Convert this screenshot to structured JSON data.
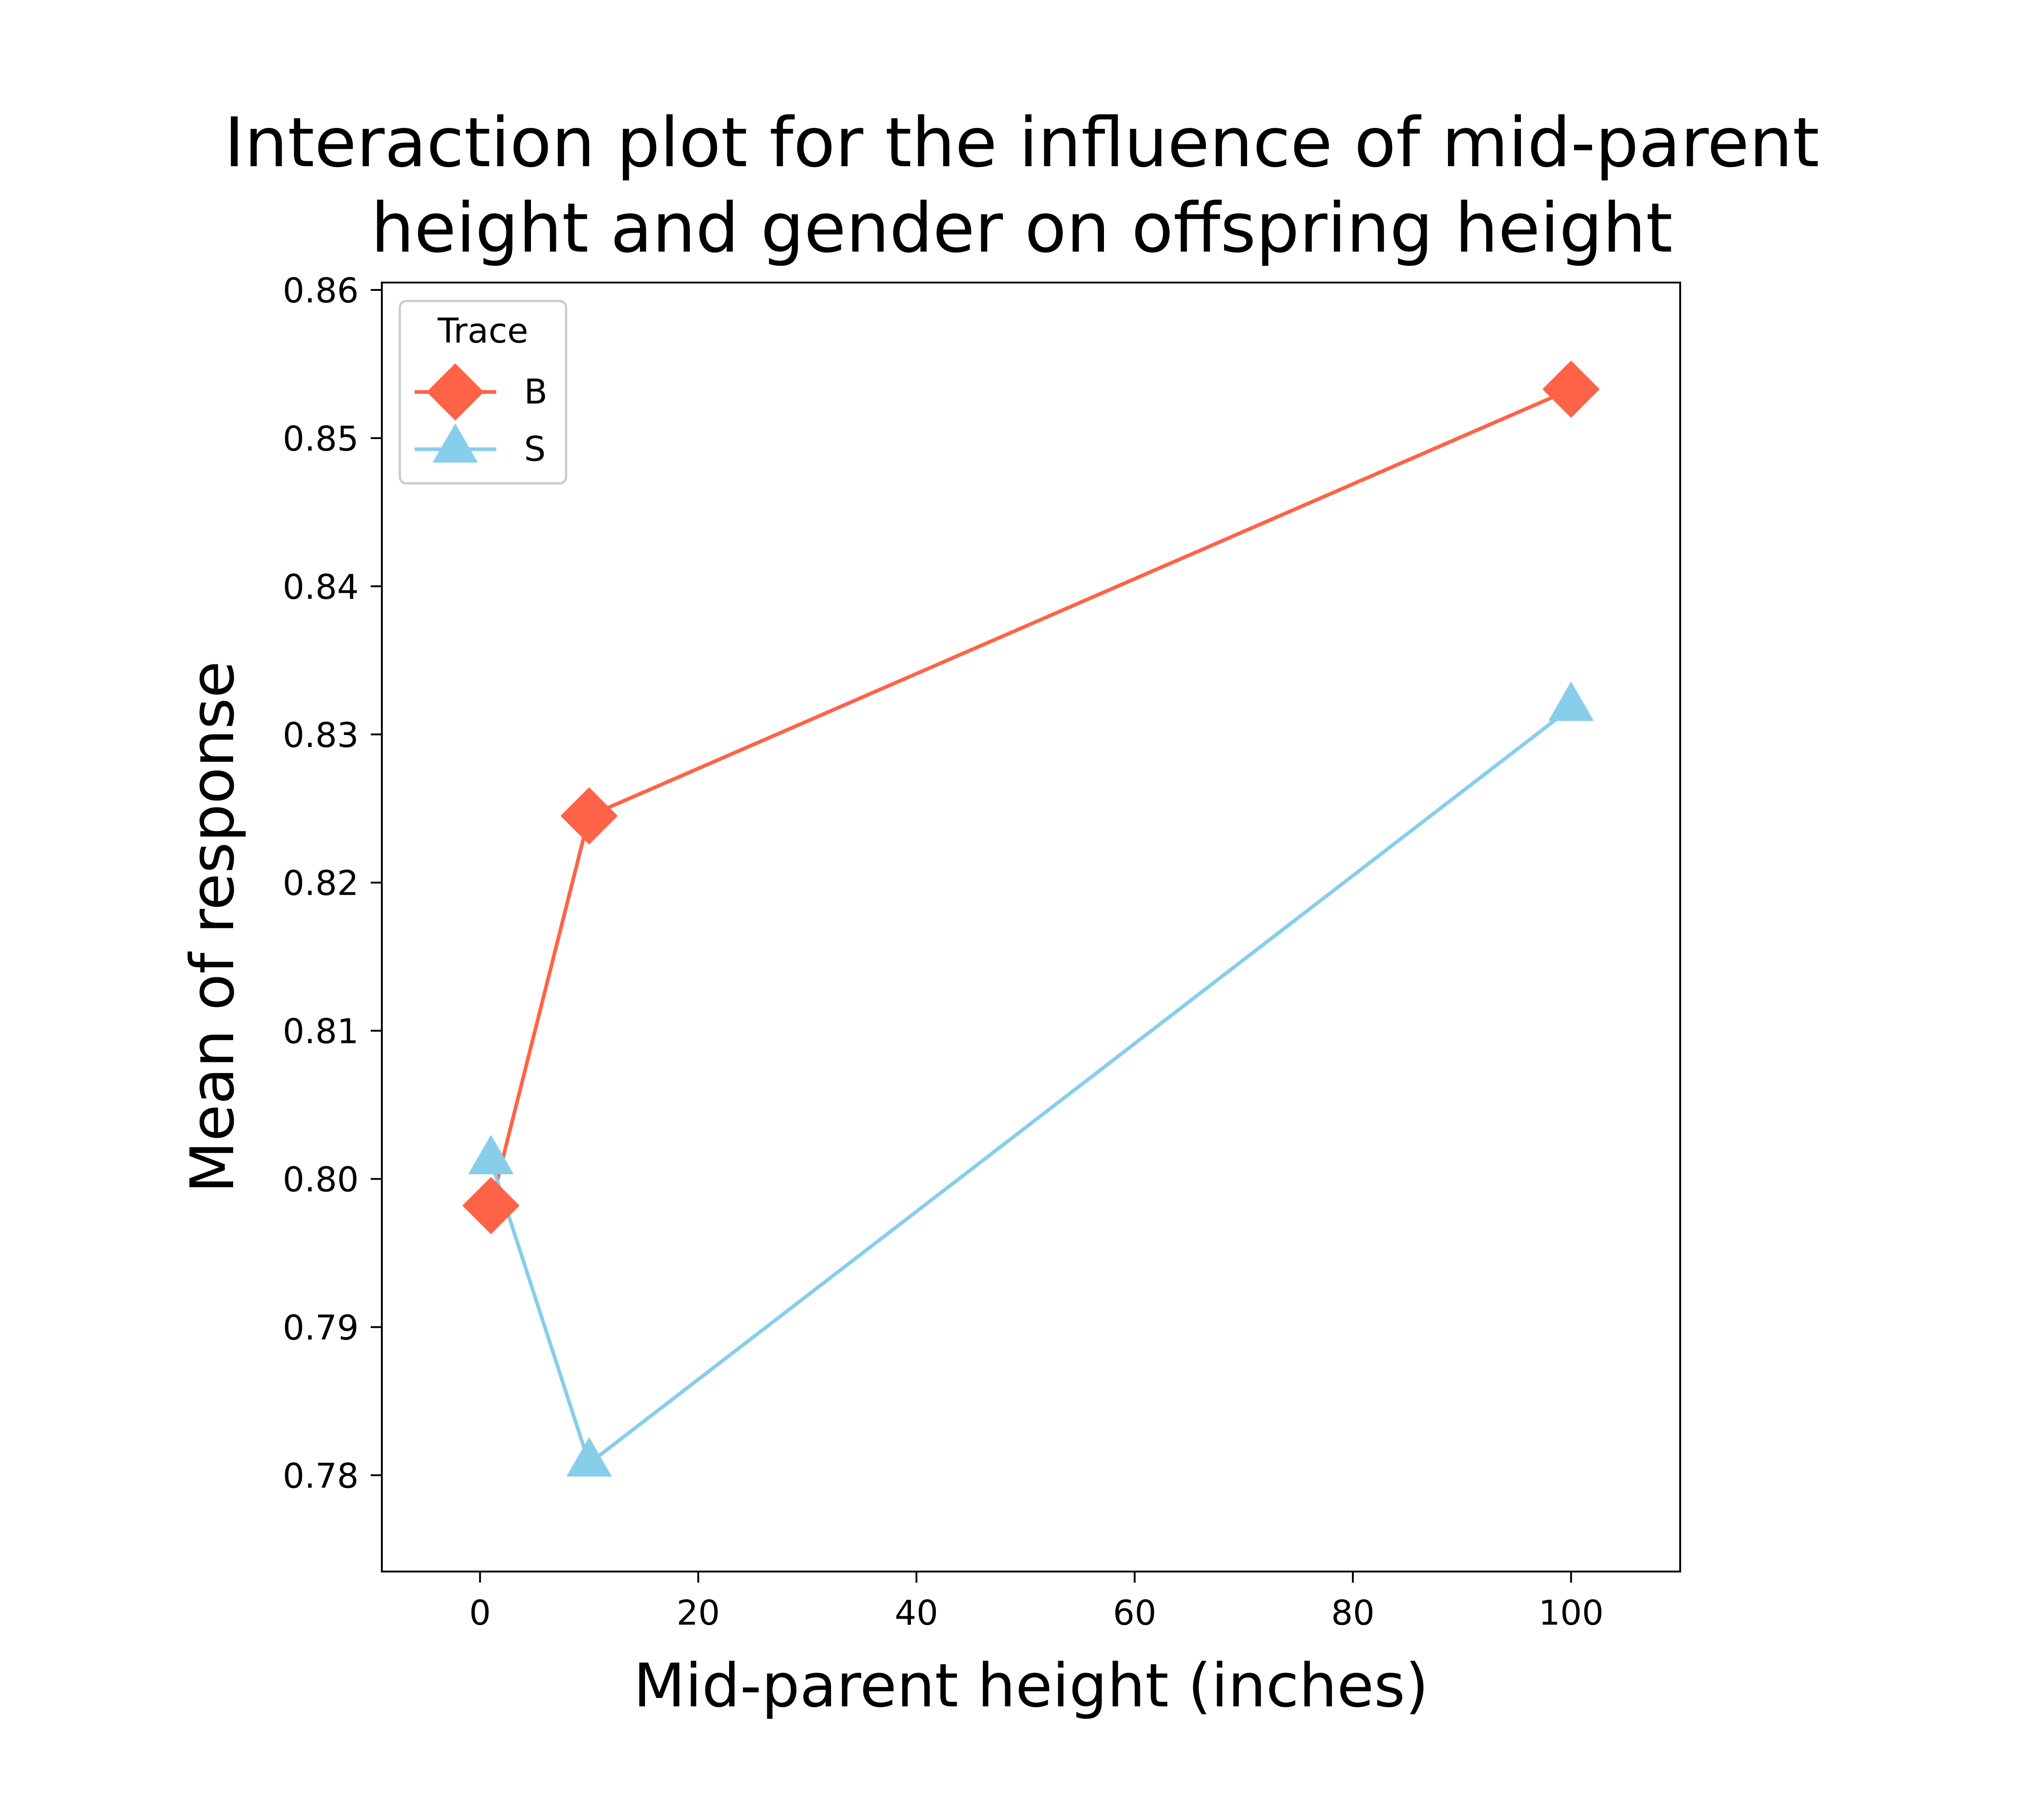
{
  "chart_data": {
    "type": "line",
    "title_lines": [
      "Interaction plot for the influence of mid-parent",
      "height and gender on offspring height"
    ],
    "xlabel": "Mid-parent height (inches)",
    "ylabel": "Mean of response",
    "xlim": [
      -9,
      110
    ],
    "ylim": [
      0.7735,
      0.8605
    ],
    "xticks": [
      0,
      20,
      40,
      60,
      80,
      100
    ],
    "xtick_labels": [
      "0",
      "20",
      "40",
      "60",
      "80",
      "100"
    ],
    "yticks": [
      0.78,
      0.79,
      0.8,
      0.81,
      0.82,
      0.83,
      0.84,
      0.85,
      0.86
    ],
    "ytick_labels": [
      "0.78",
      "0.79",
      "0.80",
      "0.81",
      "0.82",
      "0.83",
      "0.84",
      "0.85",
      "0.86"
    ],
    "grid": false,
    "legend": {
      "title": "Trace",
      "placement": "top-left"
    },
    "series": [
      {
        "name": "B",
        "marker": "diamond",
        "color": "#ff6347",
        "x": [
          1,
          10,
          100
        ],
        "y": [
          0.7982,
          0.8245,
          0.8533
        ]
      },
      {
        "name": "S",
        "marker": "triangle",
        "color": "#87ceeb",
        "x": [
          1,
          10,
          100
        ],
        "y": [
          0.8012,
          0.7808,
          0.8318
        ]
      }
    ]
  }
}
